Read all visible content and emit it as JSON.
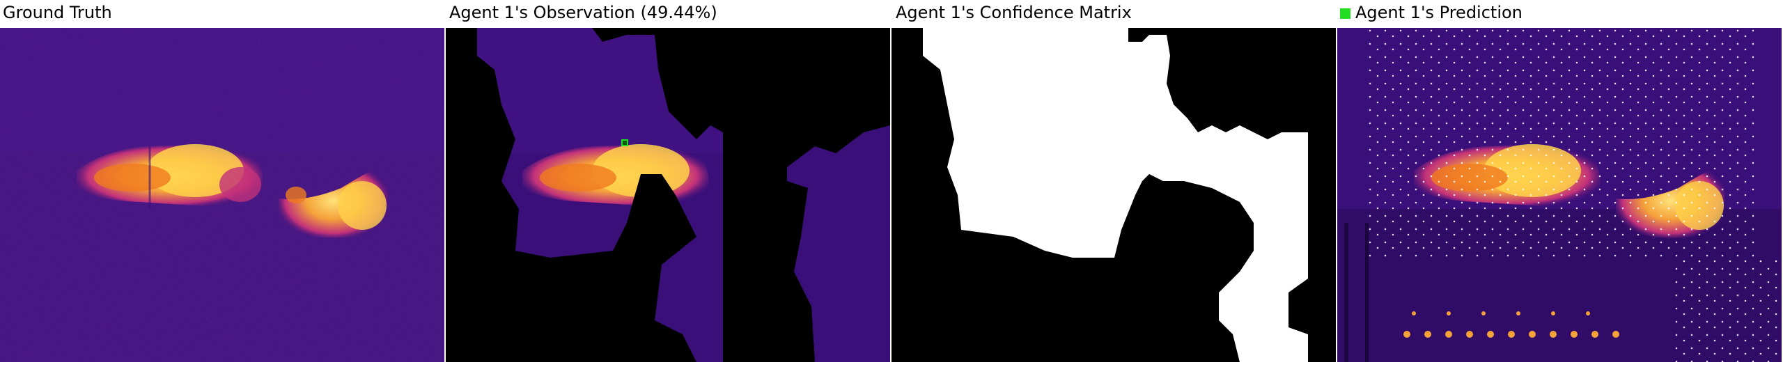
{
  "panels": [
    {
      "title": "Ground Truth"
    },
    {
      "title": "Agent 1's Observation (49.44%)"
    },
    {
      "title": "Agent 1's Confidence Matrix"
    },
    {
      "title": "Agent 1's Prediction"
    }
  ],
  "legend": {
    "color": "#22dd22"
  },
  "colors": {
    "background": "#3a0f7a",
    "plume_hot": "#ffd24a",
    "plume_mid": "#f07a1e",
    "plume_warm": "#c2317a",
    "mask": "#000000",
    "confident": "#ffffff",
    "marker": "#22dd22"
  }
}
